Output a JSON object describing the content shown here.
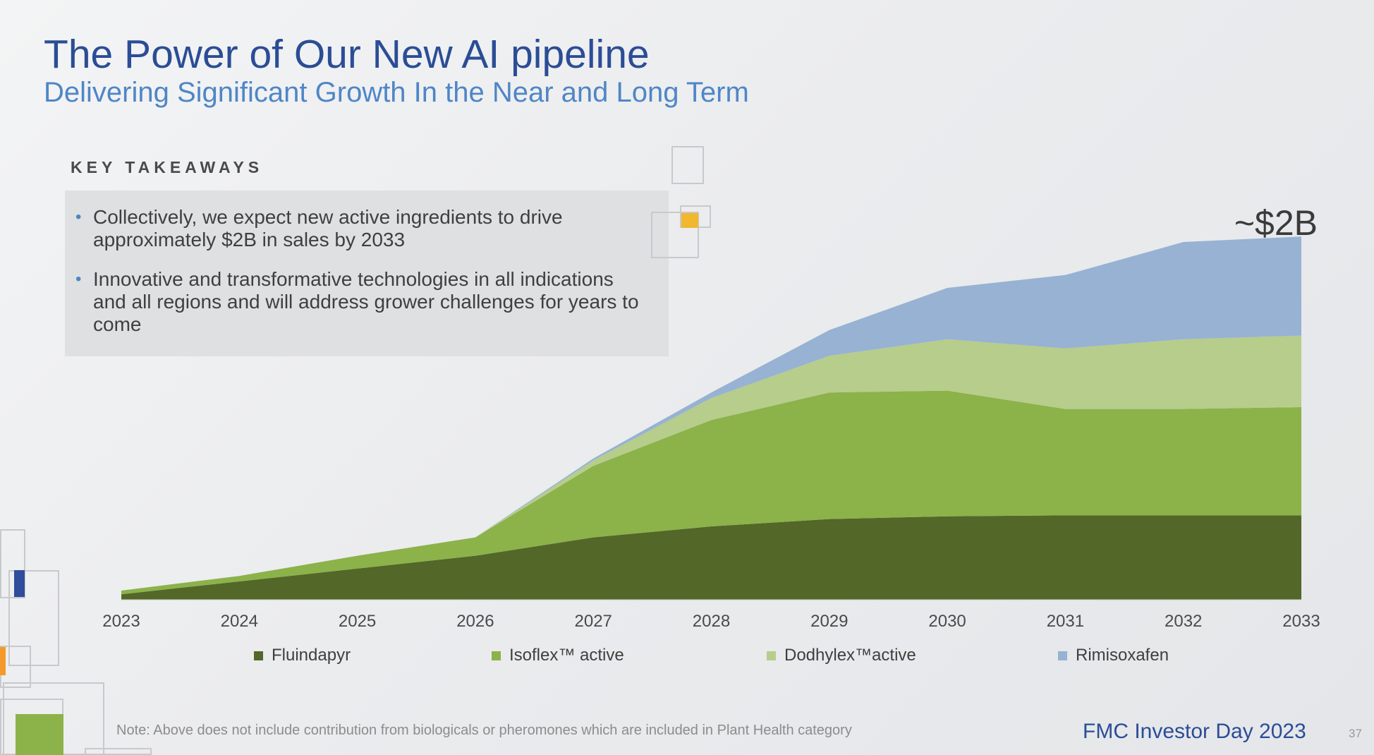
{
  "header": {
    "title": "The Power of Our New AI pipeline",
    "subtitle": "Delivering Significant Growth In the Near and Long Term"
  },
  "key_takeaways": {
    "heading": "KEY TAKEAWAYS",
    "bullets": [
      "Collectively, we expect new active ingredients to drive approximately $2B in sales by 2033",
      "Innovative and transformative technologies in all indications and all regions and will address grower challenges for years to come"
    ]
  },
  "chart_data": {
    "type": "area",
    "stacked": true,
    "x": [
      "2023",
      "2024",
      "2025",
      "2026",
      "2027",
      "2028",
      "2029",
      "2030",
      "2031",
      "2032",
      "2033"
    ],
    "series": [
      {
        "name": "Fluindapyr",
        "color": "#536728",
        "values": [
          0.03,
          0.1,
          0.17,
          0.24,
          0.34,
          0.4,
          0.44,
          0.455,
          0.46,
          0.46,
          0.46
        ]
      },
      {
        "name": "Isoflex™ active",
        "color": "#8cb24a",
        "values": [
          0.02,
          0.03,
          0.07,
          0.1,
          0.39,
          0.58,
          0.69,
          0.685,
          0.58,
          0.58,
          0.59
        ]
      },
      {
        "name": "Dodhylex™active",
        "color": "#b6cd8b",
        "values": [
          0.0,
          0.0,
          0.0,
          0.0,
          0.03,
          0.12,
          0.2,
          0.28,
          0.33,
          0.38,
          0.39
        ]
      },
      {
        "name": "Rimisoxafen",
        "color": "#97b2d3",
        "values": [
          0.0,
          0.0,
          0.0,
          0.0,
          0.01,
          0.03,
          0.14,
          0.28,
          0.4,
          0.53,
          0.54
        ]
      }
    ],
    "annotation": "~$2B",
    "legend_position": "bottom",
    "grid": false
  },
  "footer": {
    "note": "Note:  Above does not include contribution from biologicals or pheromones which are included in Plant Health category",
    "brand": "FMC Investor Day 2023",
    "page_number": "37"
  },
  "decor_colors": {
    "yellow": "#f0b72f",
    "blue": "#2f4d9c",
    "orange": "#f39a2a",
    "green": "#8cb24a",
    "outline": "#c8c9cc"
  }
}
